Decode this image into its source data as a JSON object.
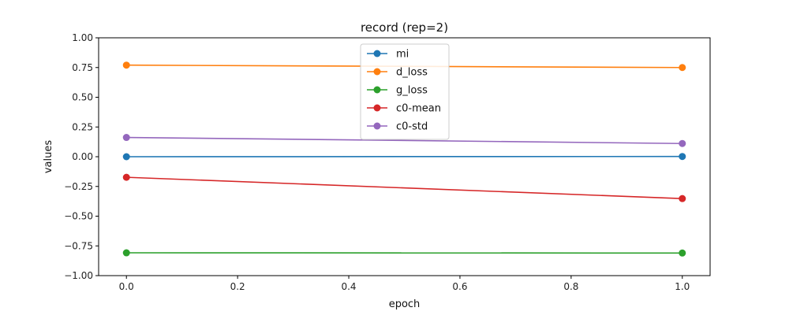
{
  "chart_data": {
    "type": "line",
    "title": "record (rep=2)",
    "xlabel": "epoch",
    "ylabel": "values",
    "x": [
      0.0,
      1.0
    ],
    "xlim": [
      -0.05,
      1.05
    ],
    "ylim": [
      -1.0,
      1.0
    ],
    "x_ticks": [
      0.0,
      0.2,
      0.4,
      0.6,
      0.8,
      1.0
    ],
    "y_ticks": [
      -1.0,
      -0.75,
      -0.5,
      -0.25,
      0.0,
      0.25,
      0.5,
      0.75,
      1.0
    ],
    "x_tick_labels": [
      "0.0",
      "0.2",
      "0.4",
      "0.6",
      "0.8",
      "1.0"
    ],
    "y_tick_labels": [
      "−1.00",
      "−0.75",
      "−0.50",
      "−0.25",
      "0.00",
      "0.25",
      "0.50",
      "0.75",
      "1.00"
    ],
    "grid": false,
    "legend_position": "upper-center",
    "series": [
      {
        "name": "mi",
        "color": "#1f77b4",
        "values": [
          0.0,
          0.002
        ]
      },
      {
        "name": "d_loss",
        "color": "#ff7f0e",
        "values": [
          0.77,
          0.75
        ]
      },
      {
        "name": "g_loss",
        "color": "#2ca02c",
        "values": [
          -0.808,
          -0.81
        ]
      },
      {
        "name": "c0-mean",
        "color": "#d62728",
        "values": [
          -0.173,
          -0.352
        ]
      },
      {
        "name": "c0-std",
        "color": "#9467bd",
        "values": [
          0.162,
          0.111
        ]
      }
    ]
  }
}
